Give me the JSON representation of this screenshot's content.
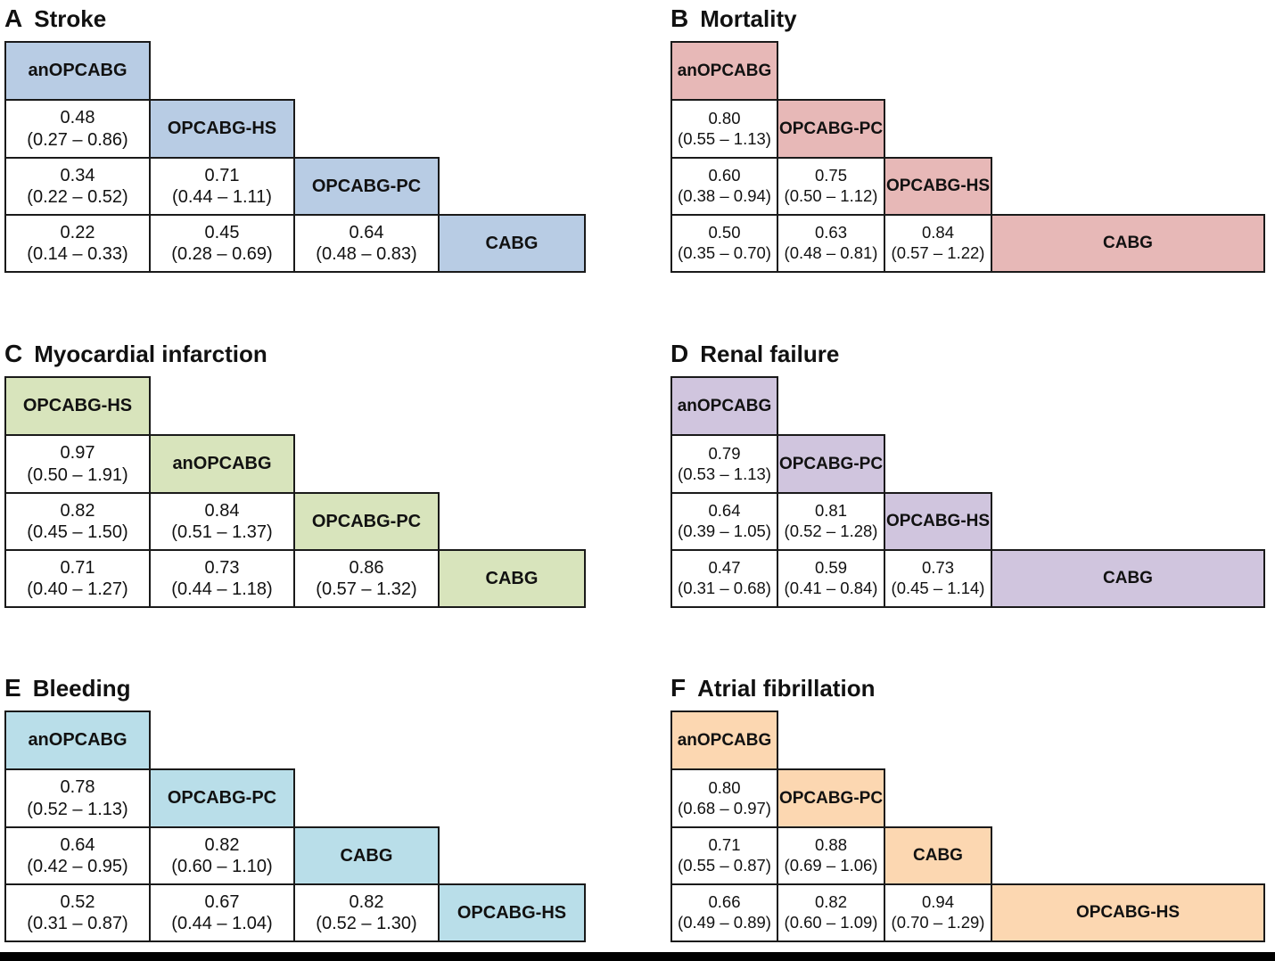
{
  "figure_type": "network-meta-analysis league tables",
  "chart_data": [
    {
      "type": "table",
      "letter": "A",
      "title": "Stroke",
      "accent_color": "#b8cce4",
      "treatments": [
        "anOPCABG",
        "OPCABG-HS",
        "OPCABG-PC",
        "CABG"
      ],
      "rows": [
        [
          {
            "est": "0.48",
            "ci": "(0.27 – 0.86)"
          }
        ],
        [
          {
            "est": "0.34",
            "ci": "(0.22 – 0.52)"
          },
          {
            "est": "0.71",
            "ci": "(0.44 – 1.11)"
          }
        ],
        [
          {
            "est": "0.22",
            "ci": "(0.14 – 0.33)"
          },
          {
            "est": "0.45",
            "ci": "(0.28 – 0.69)"
          },
          {
            "est": "0.64",
            "ci": "(0.48 – 0.83)"
          }
        ]
      ]
    },
    {
      "type": "table",
      "letter": "B",
      "title": "Mortality",
      "accent_color": "#e7b8b7",
      "treatments": [
        "anOPCABG",
        "OPCABG-PC",
        "OPCABG-HS",
        "CABG"
      ],
      "rows": [
        [
          {
            "est": "0.80",
            "ci": "(0.55 – 1.13)"
          }
        ],
        [
          {
            "est": "0.60",
            "ci": "(0.38 – 0.94)"
          },
          {
            "est": "0.75",
            "ci": "(0.50 – 1.12)"
          }
        ],
        [
          {
            "est": "0.50",
            "ci": "(0.35 – 0.70)"
          },
          {
            "est": "0.63",
            "ci": "(0.48 – 0.81)"
          },
          {
            "est": "0.84",
            "ci": "(0.57 – 1.22)"
          }
        ]
      ]
    },
    {
      "type": "table",
      "letter": "C",
      "title": "Myocardial infarction",
      "accent_color": "#d8e4bc",
      "treatments": [
        "OPCABG-HS",
        "anOPCABG",
        "OPCABG-PC",
        "CABG"
      ],
      "rows": [
        [
          {
            "est": "0.97",
            "ci": "(0.50 – 1.91)"
          }
        ],
        [
          {
            "est": "0.82",
            "ci": "(0.45 – 1.50)"
          },
          {
            "est": "0.84",
            "ci": "(0.51 – 1.37)"
          }
        ],
        [
          {
            "est": "0.71",
            "ci": "(0.40 – 1.27)"
          },
          {
            "est": "0.73",
            "ci": "(0.44 – 1.18)"
          },
          {
            "est": "0.86",
            "ci": "(0.57 – 1.32)"
          }
        ]
      ]
    },
    {
      "type": "table",
      "letter": "D",
      "title": "Renal failure",
      "accent_color": "#d0c5de",
      "treatments": [
        "anOPCABG",
        "OPCABG-PC",
        "OPCABG-HS",
        "CABG"
      ],
      "rows": [
        [
          {
            "est": "0.79",
            "ci": "(0.53 – 1.13)"
          }
        ],
        [
          {
            "est": "0.64",
            "ci": "(0.39 – 1.05)"
          },
          {
            "est": "0.81",
            "ci": "(0.52 – 1.28)"
          }
        ],
        [
          {
            "est": "0.47",
            "ci": "(0.31 – 0.68)"
          },
          {
            "est": "0.59",
            "ci": "(0.41 – 0.84)"
          },
          {
            "est": "0.73",
            "ci": "(0.45 – 1.14)"
          }
        ]
      ]
    },
    {
      "type": "table",
      "letter": "E",
      "title": "Bleeding",
      "accent_color": "#b9dee9",
      "treatments": [
        "anOPCABG",
        "OPCABG-PC",
        "CABG",
        "OPCABG-HS"
      ],
      "rows": [
        [
          {
            "est": "0.78",
            "ci": "(0.52 – 1.13)"
          }
        ],
        [
          {
            "est": "0.64",
            "ci": "(0.42 – 0.95)"
          },
          {
            "est": "0.82",
            "ci": "(0.60 – 1.10)"
          }
        ],
        [
          {
            "est": "0.52",
            "ci": "(0.31 – 0.87)"
          },
          {
            "est": "0.67",
            "ci": "(0.44 – 1.04)"
          },
          {
            "est": "0.82",
            "ci": "(0.52 – 1.30)"
          }
        ]
      ]
    },
    {
      "type": "table",
      "letter": "F",
      "title": "Atrial fibrillation",
      "accent_color": "#fcd7b1",
      "treatments": [
        "anOPCABG",
        "OPCABG-PC",
        "CABG",
        "OPCABG-HS"
      ],
      "rows": [
        [
          {
            "est": "0.80",
            "ci": "(0.68 – 0.97)"
          }
        ],
        [
          {
            "est": "0.71",
            "ci": "(0.55 – 0.87)"
          },
          {
            "est": "0.88",
            "ci": "(0.69 – 1.06)"
          }
        ],
        [
          {
            "est": "0.66",
            "ci": "(0.49 – 0.89)"
          },
          {
            "est": "0.82",
            "ci": "(0.60 – 1.09)"
          },
          {
            "est": "0.94",
            "ci": "(0.70 – 1.29)"
          }
        ]
      ]
    }
  ]
}
